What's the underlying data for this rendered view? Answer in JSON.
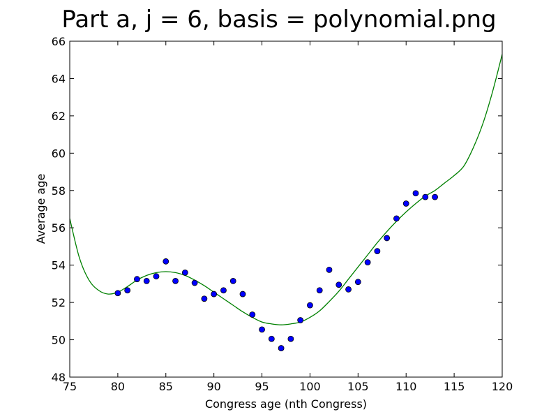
{
  "chart_data": {
    "type": "scatter",
    "title": "Part a, j = 6, basis = polynomial.png",
    "xlabel": "Congress age (nth Congress)",
    "ylabel": "Average age",
    "xlim": [
      75,
      120
    ],
    "ylim": [
      48,
      66
    ],
    "xticks": [
      75,
      80,
      85,
      90,
      95,
      100,
      105,
      110,
      115,
      120
    ],
    "yticks": [
      48,
      50,
      52,
      54,
      56,
      58,
      60,
      62,
      64,
      66
    ],
    "grid": false,
    "series": [
      {
        "type": "scatter",
        "color": "#0000ff",
        "x": [
          80,
          81,
          82,
          83,
          84,
          85,
          86,
          87,
          88,
          89,
          90,
          91,
          92,
          93,
          94,
          95,
          96,
          97,
          98,
          99,
          100,
          101,
          102,
          103,
          104,
          105,
          106,
          107,
          108,
          109,
          110,
          111,
          112,
          113
        ],
        "y": [
          52.5,
          52.65,
          53.25,
          53.15,
          53.4,
          54.2,
          53.15,
          53.6,
          53.05,
          52.2,
          52.45,
          52.65,
          53.15,
          52.45,
          51.35,
          50.55,
          50.05,
          49.55,
          50.05,
          51.05,
          51.85,
          52.65,
          53.75,
          52.95,
          52.7,
          53.1,
          54.15,
          54.75,
          55.45,
          56.5,
          57.3,
          57.85,
          57.65,
          57.65
        ]
      },
      {
        "type": "line",
        "color": "#008000",
        "x": [
          75,
          76,
          77,
          78,
          79,
          80,
          81,
          82,
          83,
          84,
          85,
          86,
          87,
          88,
          89,
          90,
          91,
          92,
          93,
          94,
          95,
          96,
          97,
          98,
          99,
          100,
          101,
          102,
          103,
          104,
          105,
          106,
          107,
          108,
          109,
          110,
          111,
          112,
          113,
          114,
          115,
          116,
          117,
          118,
          119,
          120
        ],
        "y": [
          56.5,
          54.4,
          53.2,
          52.65,
          52.45,
          52.55,
          52.85,
          53.2,
          53.45,
          53.6,
          53.65,
          53.6,
          53.45,
          53.2,
          52.9,
          52.55,
          52.2,
          51.85,
          51.5,
          51.2,
          50.95,
          50.85,
          50.8,
          50.85,
          50.95,
          51.2,
          51.55,
          52.05,
          52.6,
          53.25,
          53.9,
          54.55,
          55.2,
          55.8,
          56.35,
          56.85,
          57.3,
          57.7,
          58.0,
          58.4,
          58.8,
          59.3,
          60.3,
          61.6,
          63.3,
          65.3
        ]
      }
    ]
  }
}
